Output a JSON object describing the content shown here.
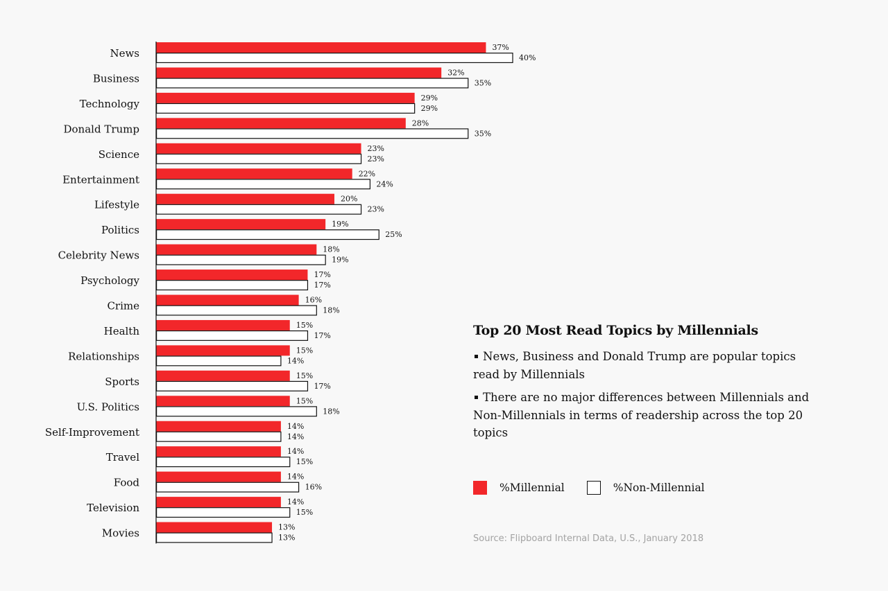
{
  "panel": {
    "title": "Top 20 Most Read Topics by Millennials",
    "bullet1": "News, Business and Donald Trump are popular topics read by Millennials",
    "bullet2": "There are no major differences between Millennials and Non-Millennials in terms of readership across the top 20 topics"
  },
  "legend": {
    "millennial": "%Millennial",
    "non_millennial": "%Non-Millennial"
  },
  "source": "Source: Flipboard Internal Data, U.S., January 2018",
  "colors": {
    "millennial": "#f2272a",
    "non_millennial": "#ffffff",
    "outline": "#111111"
  },
  "chart_data": {
    "type": "bar",
    "orientation": "horizontal",
    "title": "Top 20 Most Read Topics by Millennials",
    "categories": [
      "News",
      "Business",
      "Technology",
      "Donald Trump",
      "Science",
      "Entertainment",
      "Lifestyle",
      "Politics",
      "Celebrity News",
      "Psychology",
      "Crime",
      "Health",
      "Relationships",
      "Sports",
      "U.S. Politics",
      "Self-Improvement",
      "Travel",
      "Food",
      "Television",
      "Movies"
    ],
    "series": [
      {
        "name": "%Millennial",
        "values": [
          37,
          32,
          29,
          28,
          23,
          22,
          20,
          19,
          18,
          17,
          16,
          15,
          15,
          15,
          15,
          14,
          14,
          14,
          14,
          13
        ]
      },
      {
        "name": "%Non-Millennial",
        "values": [
          40,
          35,
          29,
          35,
          23,
          24,
          23,
          25,
          19,
          17,
          18,
          17,
          14,
          17,
          18,
          14,
          15,
          16,
          15,
          13
        ]
      }
    ],
    "value_suffix": "%",
    "xlim": [
      0,
      40
    ],
    "grid": false,
    "legend_position": "right"
  }
}
